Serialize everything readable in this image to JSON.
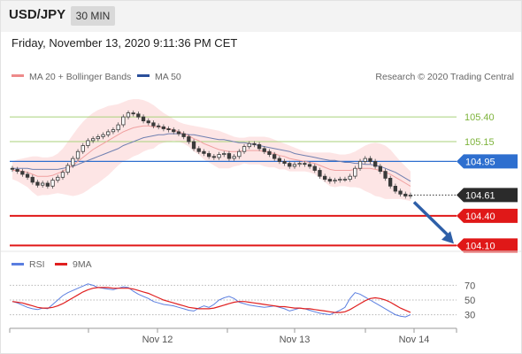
{
  "header": {
    "symbol": "USD/JPY",
    "timeframe": "30 MIN",
    "datetime": "Friday, November 13, 2020 9:11:36 PM CET"
  },
  "legend": {
    "ma20_label": "MA 20 + Bollinger Bands",
    "ma50_label": "MA 50",
    "credit": "Research © 2020 Trading Central",
    "ma20_color": "#ee8a8a",
    "ma50_color": "#2a4f9a"
  },
  "rsi_legend": {
    "rsi_label": "RSI",
    "ma_label": "9MA",
    "rsi_color": "#5a7ee0",
    "ma_color": "#e02020"
  },
  "chart_data": {
    "type": "candlestick",
    "title": "",
    "ylim": [
      104.05,
      105.75
    ],
    "x_tick_labels": [
      "Nov 12",
      "Nov 13",
      "Nov 14"
    ],
    "close": [
      104.87,
      104.85,
      104.82,
      104.79,
      104.74,
      104.71,
      104.73,
      104.7,
      104.76,
      104.79,
      104.84,
      104.91,
      104.98,
      105.05,
      105.11,
      105.16,
      105.18,
      105.2,
      105.22,
      105.25,
      105.27,
      105.32,
      105.4,
      105.44,
      105.43,
      105.4,
      105.36,
      105.34,
      105.31,
      105.3,
      105.28,
      105.27,
      105.25,
      105.23,
      105.2,
      105.15,
      105.08,
      105.05,
      105.03,
      105.0,
      104.99,
      105.02,
      105.03,
      104.98,
      105.0,
      105.05,
      105.1,
      105.13,
      105.12,
      105.08,
      105.05,
      105.02,
      104.98,
      104.95,
      104.93,
      104.9,
      104.92,
      104.93,
      104.92,
      104.9,
      104.86,
      104.8,
      104.77,
      104.75,
      104.76,
      104.77,
      104.77,
      104.8,
      104.88,
      104.95,
      104.98,
      104.95,
      104.9,
      104.85,
      104.78,
      104.7,
      104.65,
      104.62,
      104.6,
      104.61
    ],
    "open": [
      104.88,
      104.87,
      104.85,
      104.82,
      104.79,
      104.74,
      104.71,
      104.73,
      104.7,
      104.76,
      104.79,
      104.84,
      104.91,
      104.98,
      105.05,
      105.11,
      105.16,
      105.18,
      105.2,
      105.22,
      105.25,
      105.27,
      105.32,
      105.4,
      105.44,
      105.43,
      105.4,
      105.36,
      105.34,
      105.31,
      105.3,
      105.28,
      105.27,
      105.25,
      105.23,
      105.2,
      105.15,
      105.08,
      105.05,
      105.03,
      105.0,
      104.99,
      105.02,
      105.03,
      104.98,
      105.0,
      105.05,
      105.1,
      105.13,
      105.12,
      105.08,
      105.05,
      105.02,
      104.98,
      104.95,
      104.93,
      104.9,
      104.92,
      104.93,
      104.92,
      104.9,
      104.86,
      104.8,
      104.77,
      104.75,
      104.76,
      104.77,
      104.77,
      104.8,
      104.88,
      104.95,
      104.98,
      104.95,
      104.9,
      104.85,
      104.78,
      104.7,
      104.65,
      104.62,
      104.6
    ],
    "ma20": [
      104.86,
      104.86,
      104.85,
      104.84,
      104.82,
      104.8,
      104.8,
      104.8,
      104.81,
      104.83,
      104.85,
      104.88,
      104.91,
      104.95,
      104.99,
      105.03,
      105.07,
      105.1,
      105.13,
      105.16,
      105.19,
      105.22,
      105.25,
      105.27,
      105.29,
      105.3,
      105.31,
      105.31,
      105.3,
      105.3,
      105.29,
      105.28,
      105.27,
      105.25,
      105.23,
      105.21,
      105.18,
      105.16,
      105.13,
      105.11,
      105.09,
      105.07,
      105.06,
      105.05,
      105.05,
      105.05,
      105.06,
      105.06,
      105.06,
      105.06,
      105.05,
      105.04,
      105.03,
      105.01,
      105.0,
      104.98,
      104.97,
      104.96,
      104.95,
      104.94,
      104.93,
      104.91,
      104.89,
      104.87,
      104.86,
      104.86,
      104.86,
      104.86,
      104.87,
      104.88,
      104.88,
      104.88,
      104.87,
      104.86,
      104.84,
      104.82,
      104.79,
      104.76,
      104.73,
      104.7
    ],
    "bollinger_upper": [
      104.95,
      104.97,
      104.98,
      104.99,
      105.0,
      105.0,
      104.99,
      104.99,
      105.0,
      105.03,
      105.08,
      105.15,
      105.22,
      105.29,
      105.35,
      105.4,
      105.44,
      105.47,
      105.49,
      105.51,
      105.52,
      105.53,
      105.55,
      105.57,
      105.58,
      105.58,
      105.57,
      105.55,
      105.52,
      105.48,
      105.44,
      105.41,
      105.38,
      105.35,
      105.33,
      105.32,
      105.31,
      105.3,
      105.29,
      105.28,
      105.27,
      105.26,
      105.24,
      105.22,
      105.2,
      105.19,
      105.19,
      105.2,
      105.2,
      105.2,
      105.2,
      105.19,
      105.17,
      105.15,
      105.13,
      105.11,
      105.09,
      105.07,
      105.05,
      105.04,
      105.04,
      105.04,
      105.04,
      105.04,
      105.03,
      105.02,
      105.02,
      105.03,
      105.05,
      105.08,
      105.11,
      105.13,
      105.14,
      105.13,
      105.11,
      105.07,
      105.01,
      104.95,
      104.9,
      104.85
    ],
    "bollinger_lower": [
      104.77,
      104.75,
      104.72,
      104.69,
      104.64,
      104.6,
      104.61,
      104.61,
      104.62,
      104.63,
      104.62,
      104.61,
      104.6,
      104.61,
      104.63,
      104.66,
      104.7,
      104.73,
      104.77,
      104.81,
      104.86,
      104.91,
      104.95,
      104.97,
      105.0,
      105.02,
      105.05,
      105.07,
      105.08,
      105.12,
      105.14,
      105.15,
      105.16,
      105.15,
      105.13,
      105.1,
      105.05,
      105.02,
      104.97,
      104.94,
      104.91,
      104.88,
      104.88,
      104.88,
      104.9,
      104.91,
      104.93,
      104.92,
      104.92,
      104.92,
      104.9,
      104.89,
      104.89,
      104.87,
      104.87,
      104.85,
      104.85,
      104.85,
      104.85,
      104.84,
      104.82,
      104.78,
      104.74,
      104.7,
      104.69,
      104.7,
      104.7,
      104.69,
      104.69,
      104.68,
      104.65,
      104.63,
      104.6,
      104.59,
      104.57,
      104.57,
      104.57,
      104.57,
      104.56,
      104.55
    ],
    "ma50": [
      104.88,
      104.88,
      104.88,
      104.88,
      104.87,
      104.87,
      104.87,
      104.87,
      104.87,
      104.87,
      104.88,
      104.89,
      104.9,
      104.92,
      104.94,
      104.96,
      104.98,
      105.0,
      105.02,
      105.04,
      105.06,
      105.08,
      105.11,
      105.13,
      105.15,
      105.17,
      105.19,
      105.2,
      105.21,
      105.22,
      105.22,
      105.23,
      105.23,
      105.23,
      105.23,
      105.22,
      105.22,
      105.21,
      105.2,
      105.19,
      105.18,
      105.17,
      105.17,
      105.16,
      105.15,
      105.14,
      105.14,
      105.13,
      105.12,
      105.11,
      105.1,
      105.09,
      105.08,
      105.07,
      105.06,
      105.05,
      105.03,
      105.02,
      105.01,
      105.0,
      104.99,
      104.98,
      104.97,
      104.96,
      104.96,
      104.95,
      104.94,
      104.94,
      104.93,
      104.93,
      104.92,
      104.92,
      104.91,
      104.9,
      104.88,
      104.86,
      104.84,
      104.81,
      104.78,
      104.75
    ],
    "levels": [
      {
        "value": 105.4,
        "label": "105.40",
        "kind": "resistance",
        "color": "#7db33a"
      },
      {
        "value": 105.15,
        "label": "105.15",
        "kind": "resistance",
        "color": "#7db33a"
      },
      {
        "value": 104.95,
        "label": "104.95",
        "kind": "pivot",
        "color": "#2e6fcf"
      },
      {
        "value": 104.61,
        "label": "104.61",
        "kind": "last",
        "color": "#2b2b2b"
      },
      {
        "value": 104.4,
        "label": "104.40",
        "kind": "support",
        "color": "#e01818"
      },
      {
        "value": 104.1,
        "label": "104.10",
        "kind": "support",
        "color": "#e01818"
      }
    ],
    "rsi": {
      "ylim": [
        15,
        85
      ],
      "ticks": [
        "70",
        "50",
        "30"
      ],
      "tick_values": [
        70,
        50,
        30
      ],
      "rsi_values": [
        48,
        46,
        43,
        40,
        38,
        37,
        39,
        38,
        44,
        50,
        56,
        60,
        63,
        66,
        69,
        72,
        70,
        67,
        66,
        65,
        64,
        66,
        68,
        67,
        62,
        58,
        55,
        52,
        48,
        46,
        44,
        43,
        42,
        40,
        38,
        36,
        35,
        39,
        42,
        40,
        44,
        50,
        53,
        55,
        52,
        47,
        45,
        43,
        42,
        41,
        40,
        41,
        42,
        40,
        38,
        35,
        37,
        39,
        38,
        36,
        34,
        32,
        31,
        30,
        33,
        36,
        40,
        52,
        60,
        58,
        54,
        50,
        46,
        42,
        38,
        34,
        30,
        28,
        27,
        30
      ],
      "ma_values": [
        48,
        47,
        46,
        44,
        42,
        40,
        39,
        39,
        40,
        42,
        45,
        49,
        53,
        57,
        61,
        64,
        66,
        67,
        67,
        67,
        66,
        66,
        66,
        66,
        65,
        63,
        61,
        59,
        56,
        53,
        50,
        48,
        46,
        44,
        42,
        40,
        39,
        38,
        38,
        38,
        39,
        41,
        43,
        45,
        47,
        48,
        48,
        47,
        46,
        45,
        44,
        43,
        42,
        41,
        41,
        40,
        39,
        39,
        38,
        38,
        37,
        36,
        35,
        34,
        33,
        33,
        34,
        37,
        41,
        45,
        49,
        52,
        53,
        52,
        50,
        47,
        43,
        39,
        36,
        33
      ]
    }
  }
}
